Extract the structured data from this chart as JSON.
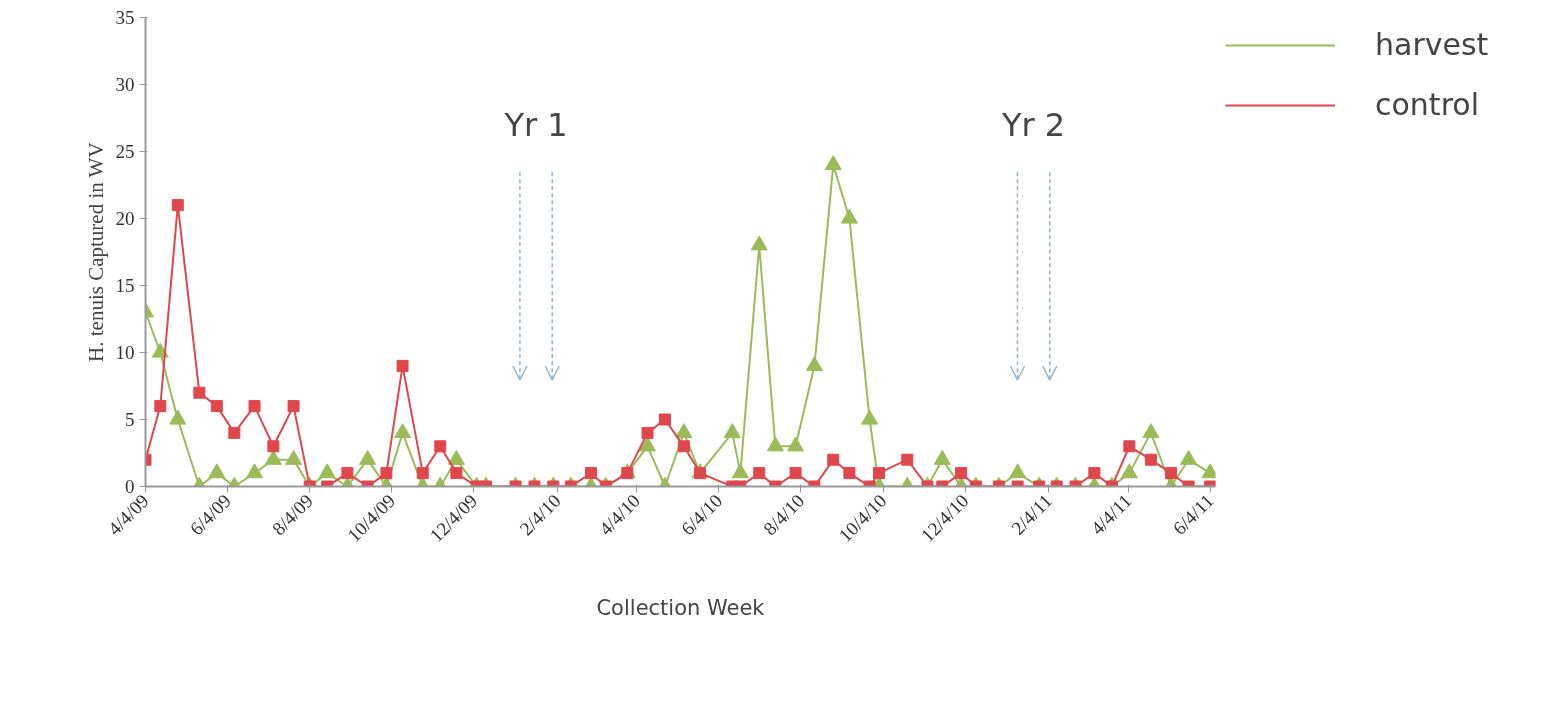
{
  "chart_data": {
    "type": "line",
    "xlabel": "Collection Week",
    "ylabel": "H. tenuis Captured in WV",
    "x": [
      "2009-04-04",
      "2009-04-15",
      "2009-04-28",
      "2009-05-14",
      "2009-05-27",
      "2009-06-09",
      "2009-06-24",
      "2009-07-08",
      "2009-07-23",
      "2009-08-04",
      "2009-08-17",
      "2009-09-01",
      "2009-09-16",
      "2009-09-30",
      "2009-10-12",
      "2009-10-27",
      "2009-11-09",
      "2009-11-21",
      "2009-12-06",
      "2009-12-13",
      "2010-01-04",
      "2010-01-18",
      "2010-02-01",
      "2010-02-14",
      "2010-03-01",
      "2010-03-12",
      "2010-03-28",
      "2010-04-12",
      "2010-04-25",
      "2010-05-09",
      "2010-05-21",
      "2010-06-14",
      "2010-06-20",
      "2010-07-04",
      "2010-07-16",
      "2010-07-31",
      "2010-08-14",
      "2010-08-28",
      "2010-09-09",
      "2010-09-24",
      "2010-10-01",
      "2010-10-22",
      "2010-11-06",
      "2010-11-17",
      "2010-12-01",
      "2010-12-12",
      "2010-12-29",
      "2011-01-12",
      "2011-01-28",
      "2011-02-10",
      "2011-02-24",
      "2011-03-10",
      "2011-03-23",
      "2011-04-05",
      "2011-04-21",
      "2011-05-06",
      "2011-05-19",
      "2011-06-04"
    ],
    "series": [
      {
        "name": "harvest",
        "color": "#9bbb59",
        "marker": "triangle",
        "values": [
          13,
          10,
          5,
          0,
          1,
          0,
          1,
          2,
          2,
          0,
          1,
          0,
          2,
          0,
          4,
          0,
          0,
          2,
          0,
          0,
          0,
          0,
          0,
          0,
          0,
          0,
          1,
          3,
          0,
          4,
          1,
          4,
          1,
          18,
          3,
          3,
          9,
          24,
          20,
          5,
          0,
          0,
          0,
          2,
          0,
          0,
          0,
          1,
          0,
          0,
          0,
          0,
          0,
          1,
          4,
          0,
          2,
          1
        ]
      },
      {
        "name": "control",
        "color": "#e0474c",
        "marker": "square",
        "values": [
          2,
          6,
          21,
          7,
          6,
          4,
          6,
          3,
          6,
          0,
          0,
          1,
          0,
          1,
          9,
          1,
          3,
          1,
          0,
          0,
          0,
          0,
          0,
          0,
          1,
          0,
          1,
          4,
          5,
          3,
          1,
          0,
          0,
          1,
          0,
          1,
          0,
          2,
          1,
          0,
          1,
          2,
          0,
          0,
          1,
          0,
          0,
          0,
          0,
          0,
          0,
          1,
          0,
          3,
          2,
          1,
          0,
          0
        ]
      }
    ],
    "xlim": [
      "2009-04-04",
      "2011-06-08"
    ],
    "xticks": [
      {
        "value": "2009-04-04",
        "label": "4/4/09"
      },
      {
        "value": "2009-06-04",
        "label": "6/4/09"
      },
      {
        "value": "2009-08-04",
        "label": "8/4/09"
      },
      {
        "value": "2009-10-04",
        "label": "10/4/09"
      },
      {
        "value": "2009-12-04",
        "label": "12/4/09"
      },
      {
        "value": "2010-02-04",
        "label": "2/4/10"
      },
      {
        "value": "2010-04-04",
        "label": "4/4/10"
      },
      {
        "value": "2010-06-04",
        "label": "6/4/10"
      },
      {
        "value": "2010-08-04",
        "label": "8/4/10"
      },
      {
        "value": "2010-10-04",
        "label": "10/4/10"
      },
      {
        "value": "2010-12-04",
        "label": "12/4/10"
      },
      {
        "value": "2011-02-04",
        "label": "2/4/11"
      },
      {
        "value": "2011-04-04",
        "label": "4/4/11"
      },
      {
        "value": "2011-06-04",
        "label": "6/4/11"
      }
    ],
    "ylim": [
      0,
      35
    ],
    "yticks": [
      0,
      5,
      10,
      15,
      20,
      25,
      30,
      35
    ],
    "annotations": [
      "Yr 1",
      "Yr 2"
    ],
    "grid": false,
    "legend": "right",
    "line_style": "solid"
  }
}
